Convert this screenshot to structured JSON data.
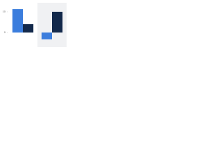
{
  "chart_data": {
    "type": "bar",
    "categories": [
      null,
      null
    ],
    "series": [
      {
        "color": "#3b7ddd",
        "values": [
          11.3,
          -3.3
        ]
      },
      {
        "color": "#13294b",
        "values": [
          4,
          10
        ]
      }
    ],
    "ylim": [
      -7,
      13
    ],
    "yticks": [
      0,
      10
    ]
  }
}
